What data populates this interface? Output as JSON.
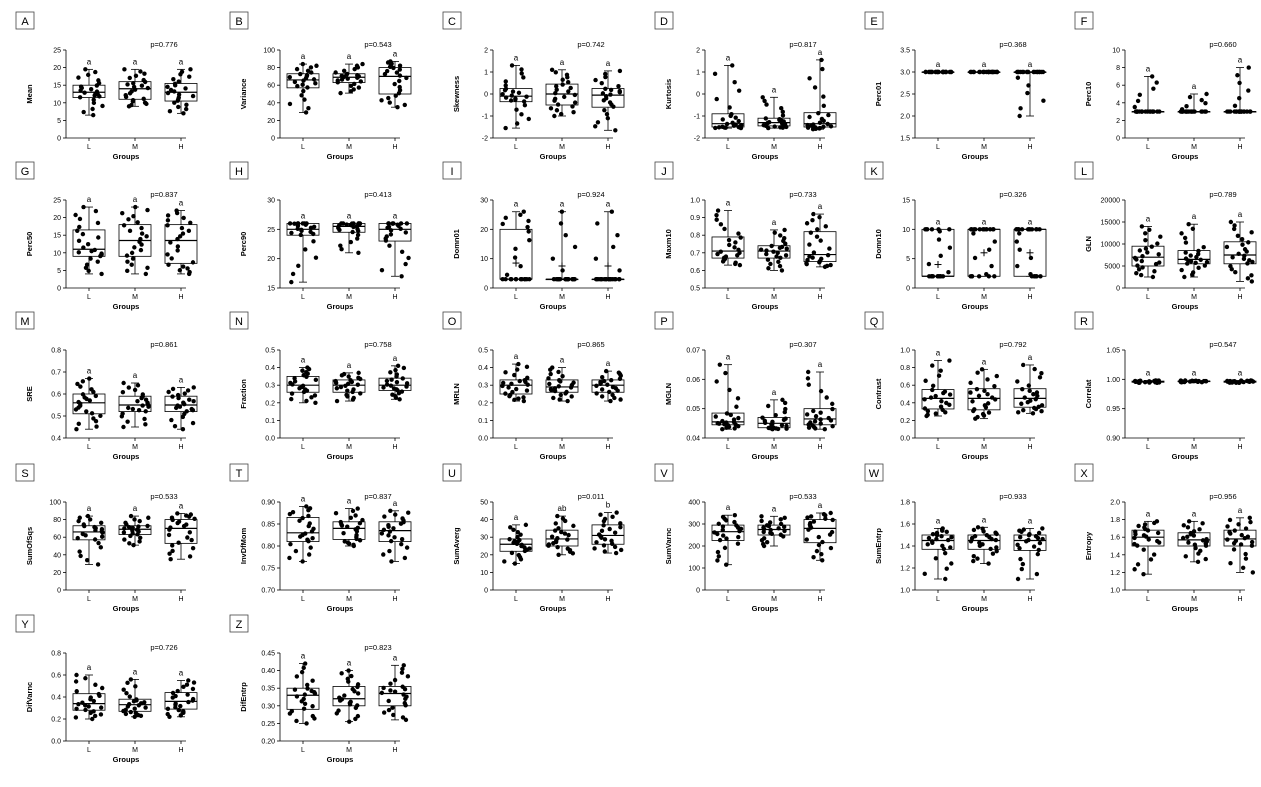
{
  "figure": {
    "groups": [
      "L",
      "M",
      "H"
    ],
    "xlabel": "Groups"
  },
  "chart_data": [
    {
      "letter": "A",
      "type": "box",
      "ylabel": "Mean",
      "p": "p=0.776",
      "sig": [
        "a",
        "a",
        "a"
      ],
      "ylim": [
        0,
        25
      ],
      "ticks": [
        0,
        5,
        10,
        15,
        20,
        25
      ],
      "stats": [
        [
          6.5,
          11.5,
          13,
          15,
          19.5
        ],
        [
          9,
          11,
          14,
          16,
          19.5
        ],
        [
          7,
          10.5,
          13,
          15.5,
          19.5
        ]
      ]
    },
    {
      "letter": "B",
      "type": "box",
      "ylabel": "Variance",
      "p": "p=0.543",
      "sig": [
        "a",
        "a",
        "a"
      ],
      "ylim": [
        0,
        100
      ],
      "ticks": [
        0,
        20,
        40,
        60,
        80,
        100
      ],
      "stats": [
        [
          29,
          57,
          66,
          73,
          84
        ],
        [
          51,
          63,
          69,
          73,
          84
        ],
        [
          35,
          50,
          70,
          80,
          87
        ]
      ]
    },
    {
      "letter": "C",
      "type": "box",
      "ylabel": "Skewness",
      "p": "p=0.742",
      "sig": [
        "a",
        "a",
        "a"
      ],
      "ylim": [
        -2,
        2
      ],
      "ticks": [
        -2,
        -1,
        0,
        1,
        2
      ],
      "stats": [
        [
          -1.55,
          -0.35,
          -0.1,
          0.25,
          1.3
        ],
        [
          -1.0,
          -0.5,
          0.0,
          0.45,
          1.1
        ],
        [
          -1.65,
          -0.6,
          -0.05,
          0.25,
          1.05
        ]
      ]
    },
    {
      "letter": "D",
      "type": "box",
      "ylabel": "Kurtosis",
      "p": "p=0.817",
      "sig": [
        "a",
        "a",
        "a"
      ],
      "ylim": [
        -2,
        2
      ],
      "ticks": [
        -2,
        -1,
        0,
        1,
        2
      ],
      "stats": [
        [
          -1.55,
          -1.5,
          -1.35,
          -0.9,
          1.3
        ],
        [
          -1.55,
          -1.45,
          -1.3,
          -1.1,
          -0.15
        ],
        [
          -1.6,
          -1.5,
          -1.35,
          -0.85,
          1.55
        ]
      ]
    },
    {
      "letter": "E",
      "type": "box",
      "ylabel": "Perc01",
      "p": "p=0.368",
      "sig": [
        "a",
        "a",
        "a"
      ],
      "ylim": [
        1.5,
        3.5
      ],
      "ticks": [
        1.5,
        2.0,
        2.5,
        3.0,
        3.5
      ],
      "stats": [
        [
          3,
          3,
          3,
          3,
          3
        ],
        [
          3,
          3,
          3,
          3,
          3
        ],
        [
          2,
          3,
          3,
          3,
          3
        ]
      ]
    },
    {
      "letter": "F",
      "type": "box",
      "ylabel": "Perc10",
      "p": "p=0.660",
      "sig": [
        "a",
        "a",
        "a"
      ],
      "ylim": [
        0,
        10
      ],
      "ticks": [
        0,
        2,
        4,
        6,
        8,
        10
      ],
      "stats": [
        [
          3,
          3,
          3,
          3,
          7
        ],
        [
          3,
          3,
          3,
          3,
          5
        ],
        [
          3,
          3,
          3,
          3,
          8
        ]
      ]
    },
    {
      "letter": "G",
      "type": "box",
      "ylabel": "Perc50",
      "p": "p=0.837",
      "sig": [
        "a",
        "a",
        "a"
      ],
      "ylim": [
        0,
        25
      ],
      "ticks": [
        0,
        5,
        10,
        15,
        20,
        25
      ],
      "stats": [
        [
          4,
          9,
          11,
          16.5,
          23
        ],
        [
          4,
          9,
          13.5,
          18,
          23
        ],
        [
          4,
          7,
          13.5,
          18,
          22
        ]
      ]
    },
    {
      "letter": "H",
      "type": "box",
      "ylabel": "Perc90",
      "p": "p=0.413",
      "sig": [
        "a",
        "a",
        "a"
      ],
      "ylim": [
        15,
        30
      ],
      "ticks": [
        15,
        20,
        25,
        30
      ],
      "stats": [
        [
          16,
          24,
          25,
          26,
          26
        ],
        [
          21,
          24.5,
          25.5,
          26,
          26
        ],
        [
          17,
          23,
          25,
          26,
          26
        ]
      ]
    },
    {
      "letter": "I",
      "type": "box",
      "ylabel": "Domn01",
      "p": "p=0.924",
      "sig": [
        "a",
        "a",
        "a"
      ],
      "ylim": [
        0,
        30
      ],
      "ticks": [
        0,
        10,
        20,
        30
      ],
      "stats": [
        [
          3,
          3,
          3,
          20,
          26
        ],
        [
          3,
          3,
          3,
          3,
          26
        ],
        [
          3,
          3,
          3,
          3,
          26
        ]
      ],
      "mean": [
        8.5,
        7.5,
        7.5
      ]
    },
    {
      "letter": "J",
      "type": "box",
      "ylabel": "Maxm10",
      "p": "p=0.733",
      "sig": [
        "a",
        "a",
        "a"
      ],
      "ylim": [
        0.5,
        1.0
      ],
      "ticks": [
        0.5,
        0.6,
        0.7,
        0.8,
        0.9,
        1.0
      ],
      "stats": [
        [
          0.63,
          0.67,
          0.71,
          0.79,
          0.94
        ],
        [
          0.6,
          0.67,
          0.71,
          0.74,
          0.83
        ],
        [
          0.62,
          0.65,
          0.69,
          0.82,
          0.92
        ]
      ]
    },
    {
      "letter": "K",
      "type": "box",
      "ylabel": "Domn10",
      "p": "p=0.326",
      "sig": [
        "a",
        "a",
        "a"
      ],
      "ylim": [
        0,
        15
      ],
      "ticks": [
        0,
        5,
        10,
        15
      ],
      "stats": [
        [
          2,
          2,
          2,
          10,
          10
        ],
        [
          2,
          2,
          10,
          10,
          10
        ],
        [
          2,
          2,
          10,
          10,
          10
        ]
      ],
      "mean": [
        4,
        6,
        6
      ]
    },
    {
      "letter": "L",
      "type": "box",
      "ylabel": "GLN",
      "p": "p=0.789",
      "sig": [
        "a",
        "a",
        "a"
      ],
      "ylim": [
        0,
        20000
      ],
      "ticks": [
        0,
        5000,
        10000,
        15000,
        20000
      ],
      "stats": [
        [
          2500,
          5000,
          7000,
          9500,
          14000
        ],
        [
          2500,
          5500,
          6500,
          8500,
          14500
        ],
        [
          1500,
          5500,
          7500,
          10500,
          15000
        ]
      ]
    },
    {
      "letter": "M",
      "type": "box",
      "ylabel": "SRE",
      "p": "p=0.861",
      "sig": [
        "a",
        "a",
        "a"
      ],
      "ylim": [
        0.4,
        0.8
      ],
      "ticks": [
        0.4,
        0.5,
        0.6,
        0.7,
        0.8
      ],
      "stats": [
        [
          0.44,
          0.51,
          0.56,
          0.6,
          0.67
        ],
        [
          0.45,
          0.52,
          0.55,
          0.59,
          0.65
        ],
        [
          0.44,
          0.52,
          0.55,
          0.59,
          0.63
        ]
      ]
    },
    {
      "letter": "N",
      "type": "box",
      "ylabel": "Fraction",
      "p": "p=0.758",
      "sig": [
        "a",
        "a",
        "a"
      ],
      "ylim": [
        0,
        0.5
      ],
      "ticks": [
        0,
        0.1,
        0.2,
        0.3,
        0.4,
        0.5
      ],
      "stats": [
        [
          0.2,
          0.26,
          0.3,
          0.35,
          0.4
        ],
        [
          0.21,
          0.26,
          0.3,
          0.33,
          0.37
        ],
        [
          0.22,
          0.27,
          0.3,
          0.34,
          0.41
        ]
      ]
    },
    {
      "letter": "O",
      "type": "box",
      "ylabel": "MRLN",
      "p": "p=0.865",
      "sig": [
        "a",
        "a",
        "a"
      ],
      "ylim": [
        0,
        0.5
      ],
      "ticks": [
        0,
        0.1,
        0.2,
        0.3,
        0.4,
        0.5
      ],
      "stats": [
        [
          0.21,
          0.25,
          0.3,
          0.33,
          0.42
        ],
        [
          0.21,
          0.26,
          0.29,
          0.33,
          0.4
        ],
        [
          0.21,
          0.26,
          0.3,
          0.33,
          0.38
        ]
      ]
    },
    {
      "letter": "P",
      "type": "box",
      "ylabel": "MGLN",
      "p": "p=0.307",
      "sig": [
        "a",
        "a",
        "a"
      ],
      "ylim": [
        0.04,
        0.07
      ],
      "ticks": [
        0.04,
        0.05,
        0.06,
        0.07
      ],
      "stats": [
        [
          0.043,
          0.0445,
          0.0455,
          0.0485,
          0.065
        ],
        [
          0.043,
          0.0435,
          0.045,
          0.047,
          0.053
        ],
        [
          0.043,
          0.0445,
          0.0465,
          0.05,
          0.0625
        ]
      ]
    },
    {
      "letter": "Q",
      "type": "box",
      "ylabel": "Contrast",
      "p": "p=0.792",
      "sig": [
        "a",
        "a",
        "a"
      ],
      "ylim": [
        0,
        1.0
      ],
      "ticks": [
        0,
        0.2,
        0.4,
        0.6,
        0.8,
        1.0
      ],
      "stats": [
        [
          0.25,
          0.33,
          0.45,
          0.55,
          0.88
        ],
        [
          0.22,
          0.32,
          0.45,
          0.56,
          0.78
        ],
        [
          0.28,
          0.35,
          0.45,
          0.56,
          0.83
        ]
      ]
    },
    {
      "letter": "R",
      "type": "box",
      "ylabel": "Correlat",
      "p": "p=0.547",
      "sig": [
        "a",
        "a",
        "a"
      ],
      "ylim": [
        0.9,
        1.05
      ],
      "ticks": [
        0.9,
        0.95,
        1.0,
        1.05
      ],
      "stats": [
        [
          0.994,
          0.995,
          0.996,
          0.997,
          0.998
        ],
        [
          0.995,
          0.996,
          0.997,
          0.997,
          0.998
        ],
        [
          0.994,
          0.995,
          0.996,
          0.997,
          0.998
        ]
      ]
    },
    {
      "letter": "S",
      "type": "box",
      "ylabel": "SumOfSqs",
      "p": "p=0.533",
      "sig": [
        "a",
        "a",
        "a"
      ],
      "ylim": [
        0,
        100
      ],
      "ticks": [
        0,
        20,
        40,
        60,
        80,
        100
      ],
      "stats": [
        [
          29,
          57,
          66,
          73,
          84
        ],
        [
          51,
          63,
          69,
          73,
          84
        ],
        [
          35,
          53,
          70,
          80,
          87
        ]
      ]
    },
    {
      "letter": "T",
      "type": "box",
      "ylabel": "InvDfMom",
      "p": "p=0.837",
      "sig": [
        "a",
        "a",
        "a"
      ],
      "ylim": [
        0.7,
        0.9
      ],
      "ticks": [
        0.7,
        0.75,
        0.8,
        0.85,
        0.9
      ],
      "stats": [
        [
          0.765,
          0.81,
          0.83,
          0.865,
          0.89
        ],
        [
          0.8,
          0.815,
          0.84,
          0.855,
          0.885
        ],
        [
          0.765,
          0.81,
          0.835,
          0.855,
          0.88
        ]
      ]
    },
    {
      "letter": "U",
      "type": "box",
      "ylabel": "SumAverg",
      "p": "p=0.011",
      "sig": [
        "a",
        "ab",
        "b"
      ],
      "ylim": [
        0,
        50
      ],
      "ticks": [
        0,
        10,
        20,
        30,
        40,
        50
      ],
      "stats": [
        [
          15,
          22,
          26,
          29,
          37
        ],
        [
          20,
          25,
          29,
          34,
          42
        ],
        [
          21,
          26,
          31,
          37,
          44
        ]
      ]
    },
    {
      "letter": "V",
      "type": "box",
      "ylabel": "SumVarnc",
      "p": "p=0.533",
      "sig": [
        "a",
        "a",
        "a"
      ],
      "ylim": [
        0,
        400
      ],
      "ticks": [
        0,
        100,
        200,
        300,
        400
      ],
      "stats": [
        [
          115,
          225,
          265,
          295,
          340
        ],
        [
          200,
          250,
          275,
          295,
          335
        ],
        [
          135,
          215,
          280,
          320,
          350
        ]
      ]
    },
    {
      "letter": "W",
      "type": "box",
      "ylabel": "SumEntrp",
      "p": "p=0.933",
      "sig": [
        "a",
        "a",
        "a"
      ],
      "ylim": [
        1.0,
        1.8
      ],
      "ticks": [
        1.0,
        1.2,
        1.4,
        1.6,
        1.8
      ],
      "stats": [
        [
          1.1,
          1.37,
          1.45,
          1.5,
          1.56
        ],
        [
          1.24,
          1.37,
          1.45,
          1.5,
          1.57
        ],
        [
          1.1,
          1.36,
          1.45,
          1.5,
          1.56
        ]
      ]
    },
    {
      "letter": "X",
      "type": "box",
      "ylabel": "Entropy",
      "p": "p=0.956",
      "sig": [
        "a",
        "a",
        "a"
      ],
      "ylim": [
        1.0,
        2.0
      ],
      "ticks": [
        1.0,
        1.2,
        1.4,
        1.6,
        1.8,
        2.0
      ],
      "stats": [
        [
          1.18,
          1.5,
          1.6,
          1.68,
          1.78
        ],
        [
          1.32,
          1.5,
          1.57,
          1.65,
          1.78
        ],
        [
          1.2,
          1.5,
          1.58,
          1.68,
          1.82
        ]
      ]
    },
    {
      "letter": "Y",
      "type": "box",
      "ylabel": "DifVarnc",
      "p": "p=0.726",
      "sig": [
        "a",
        "a",
        "a"
      ],
      "ylim": [
        0,
        0.8
      ],
      "ticks": [
        0,
        0.2,
        0.4,
        0.6,
        0.8
      ],
      "stats": [
        [
          0.2,
          0.28,
          0.34,
          0.43,
          0.6
        ],
        [
          0.22,
          0.27,
          0.33,
          0.38,
          0.56
        ],
        [
          0.22,
          0.29,
          0.36,
          0.44,
          0.55
        ]
      ]
    },
    {
      "letter": "Z",
      "type": "box",
      "ylabel": "DifEntrp",
      "p": "p=0.823",
      "sig": [
        "a",
        "a",
        "a"
      ],
      "ylim": [
        0.2,
        0.45
      ],
      "ticks": [
        0.2,
        0.25,
        0.3,
        0.35,
        0.4,
        0.45
      ],
      "stats": [
        [
          0.25,
          0.29,
          0.33,
          0.35,
          0.42
        ],
        [
          0.255,
          0.3,
          0.32,
          0.355,
          0.4
        ],
        [
          0.26,
          0.3,
          0.335,
          0.355,
          0.415
        ]
      ]
    }
  ]
}
